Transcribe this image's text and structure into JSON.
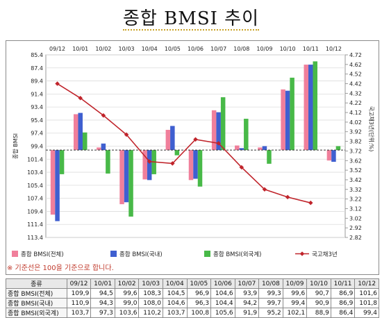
{
  "title": "종합 BMSI 추이",
  "note": "※ 기준선은 100을 기준으로 합니다.",
  "colors": {
    "total": "#f07f9b",
    "domestic": "#3f5fd0",
    "foreign": "#48b948",
    "bond": "#c0242b"
  },
  "chart_data": {
    "type": "bar",
    "categories": [
      "09/12",
      "10/01",
      "10/02",
      "10/03",
      "10/04",
      "10/05",
      "10/06",
      "10/07",
      "10/08",
      "10/09",
      "10/10",
      "10/11",
      "10/12"
    ],
    "ylabel_left": "종합 BMSI",
    "ylabel_right": "국고채3년(단위:%)",
    "left_axis": {
      "ticks": [
        85.4,
        87.4,
        89.4,
        91.4,
        93.4,
        95.4,
        97.4,
        99.4,
        101.4,
        103.4,
        105.4,
        107.4,
        109.4,
        111.4,
        113.4
      ],
      "inverted": true,
      "baseline": 100
    },
    "right_axis": {
      "ticks": [
        4.72,
        4.62,
        4.52,
        4.42,
        4.32,
        4.22,
        4.12,
        4.02,
        3.92,
        3.82,
        3.72,
        3.62,
        3.52,
        3.42,
        3.32,
        3.22,
        3.12,
        3.02,
        2.92,
        2.82
      ],
      "min": 2.82,
      "max": 4.72
    },
    "series": [
      {
        "name": "종합 BMSI(전체)",
        "values": [
          109.9,
          94.5,
          99.6,
          108.3,
          104.5,
          96.9,
          104.6,
          93.9,
          99.3,
          99.6,
          90.7,
          86.9,
          101.6
        ]
      },
      {
        "name": "종합 BMSI(국내)",
        "values": [
          110.9,
          94.3,
          99.0,
          108.0,
          104.6,
          96.3,
          104.4,
          94.2,
          99.7,
          99.4,
          90.9,
          86.9,
          101.8
        ]
      },
      {
        "name": "종합 BMSI(외국계)",
        "values": [
          103.7,
          97.3,
          103.6,
          110.2,
          103.7,
          100.8,
          105.6,
          91.9,
          95.2,
          102.1,
          88.9,
          86.4,
          99.4
        ]
      }
    ],
    "line_series": {
      "name": "국고채3년",
      "values": [
        4.42,
        4.27,
        4.09,
        3.89,
        3.61,
        3.59,
        3.84,
        3.8,
        3.55,
        3.32,
        3.24,
        3.18
      ]
    },
    "legend": [
      "종합 BMSI(전체)",
      "종합 BMSI(국내)",
      "종합 BMSI(외국계)",
      "국고채3년"
    ]
  },
  "table": {
    "header": [
      "종류",
      "09/12",
      "10/01",
      "10/02",
      "10/03",
      "10/04",
      "10/05",
      "10/06",
      "10/07",
      "10/08",
      "10/09",
      "10/10",
      "10/11",
      "10/12"
    ],
    "rows": [
      [
        "종합 BMSI(전체)",
        "109,9",
        "94,5",
        "99,6",
        "108,3",
        "104,5",
        "96,9",
        "104,6",
        "93,9",
        "99,3",
        "99,6",
        "90,7",
        "86,9",
        "101,6"
      ],
      [
        "종합 BMSI(국내)",
        "110,9",
        "94,3",
        "99,0",
        "108,0",
        "104,6",
        "96,3",
        "104,4",
        "94,2",
        "99,7",
        "99,4",
        "90,9",
        "86,9",
        "101,8"
      ],
      [
        "종합 BMSI(외국계)",
        "103,7",
        "97,3",
        "103,6",
        "110,2",
        "103,7",
        "100,8",
        "105,6",
        "91,9",
        "95,2",
        "102,1",
        "88,9",
        "86,4",
        "99,4"
      ]
    ]
  }
}
